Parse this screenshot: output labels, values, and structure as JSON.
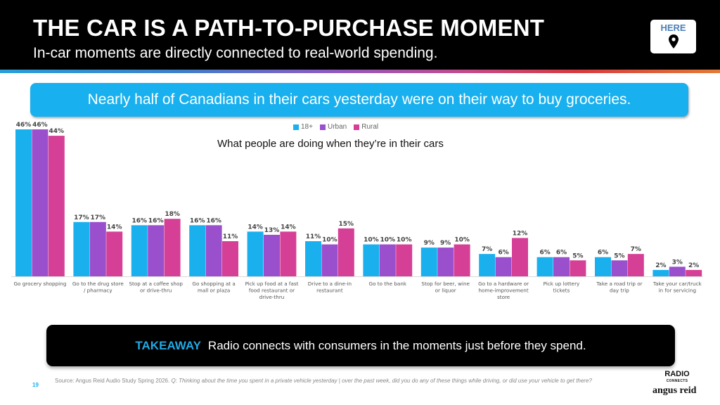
{
  "header": {
    "title": "THE CAR IS A PATH-TO-PURCHASE MOMENT",
    "subtitle": "In-car moments are directly connected to real-world spending.",
    "badge_label": "HERE",
    "badge_icon": "map-pin-icon"
  },
  "callout": {
    "text": "Nearly half of Canadians in their cars yesterday were on their way to buy groceries."
  },
  "chart_data": {
    "type": "bar",
    "title": "What people are doing when they’re in their cars",
    "xlabel": "",
    "ylabel": "",
    "ylim": [
      0,
      46
    ],
    "grid": false,
    "legend_position": "top-center",
    "categories": [
      "Go grocery shopping",
      "Go to the drug store / pharmacy",
      "Stop at a coffee shop or drive-thru",
      "Go shopping at a mall or plaza",
      "Pick up food at a fast food restaurant or drive-thru",
      "Drive to a dine-in restaurant",
      "Go to the bank",
      "Stop for beer, wine or liquor",
      "Go to a hardware or home-improvement store",
      "Pick up lottery tickets",
      "Take a road trip or day trip",
      "Take your car/truck in for servicing"
    ],
    "category_lines": [
      [
        "Go grocery shopping"
      ],
      [
        "Go to the drug store",
        "/ pharmacy"
      ],
      [
        "Stop at a coffee shop",
        "or drive-thru"
      ],
      [
        "Go shopping at a",
        "mall or plaza"
      ],
      [
        "Pick up food at a fast",
        "food restaurant or",
        "drive-thru"
      ],
      [
        "Drive to a dine-in",
        "restaurant"
      ],
      [
        "Go to the bank"
      ],
      [
        "Stop for beer, wine",
        "or liquor"
      ],
      [
        "Go to a hardware or",
        "home-improvement",
        "store"
      ],
      [
        "Pick up lottery",
        "tickets"
      ],
      [
        "Take a road trip or",
        "day trip"
      ],
      [
        "Take your car/truck",
        "in for servicing"
      ]
    ],
    "series": [
      {
        "name": "18+",
        "color": "#1ab0ee",
        "values": [
          46,
          17,
          16,
          16,
          14,
          11,
          10,
          9,
          7,
          6,
          6,
          2
        ]
      },
      {
        "name": "Urban",
        "color": "#9a4fcc",
        "values": [
          46,
          17,
          16,
          16,
          13,
          10,
          10,
          9,
          6,
          6,
          5,
          3
        ]
      },
      {
        "name": "Rural",
        "color": "#d63f96",
        "values": [
          44,
          14,
          18,
          11,
          14,
          15,
          10,
          10,
          12,
          5,
          7,
          2
        ]
      }
    ],
    "value_suffix": "%"
  },
  "takeaway": {
    "label": "TAKEAWAY",
    "text": "Radio connects with consumers in the moments just before they spend."
  },
  "footer": {
    "page_number": "19",
    "source_prefix": "Source:  Angus Reid Audio Study Spring 2026. ",
    "source_question": "Q: Thinking about the time you spent in a private vehicle yesterday | over the past week, did you do any of these things while driving, or did use your vehicle to get there?",
    "logo_radio": "RADIO",
    "logo_connects": "CONNECTS",
    "logo_angus": "angus reid"
  }
}
